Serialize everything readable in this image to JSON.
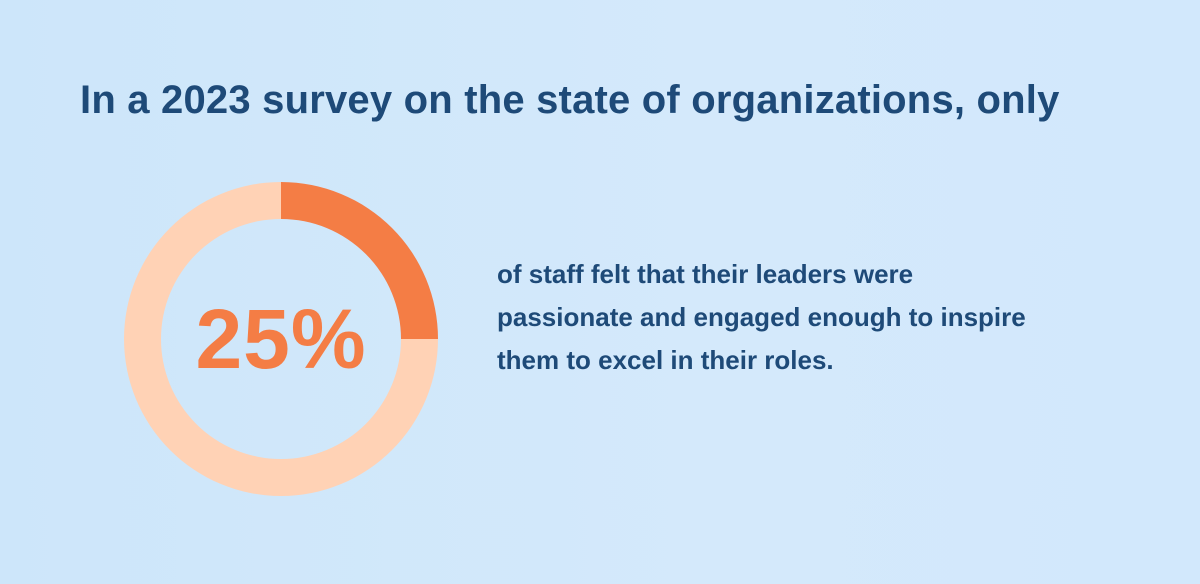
{
  "headline": "In a 2023 survey on the state of organizations, only",
  "stat": {
    "value_label": "25%",
    "caption_lines": [
      "of staff felt that their leaders were",
      "passionate and engaged enough to inspire",
      "them to excel in their roles."
    ]
  },
  "colors": {
    "background": "#cfe7fb",
    "text_dark": "#1e4a78",
    "accent": "#f47d45",
    "track": "#ffd2b5"
  },
  "chart_data": {
    "type": "pie",
    "style": "donut",
    "values": [
      25,
      75
    ],
    "colors": [
      "#f47d45",
      "#ffd2b5"
    ],
    "center_label": "25%"
  }
}
